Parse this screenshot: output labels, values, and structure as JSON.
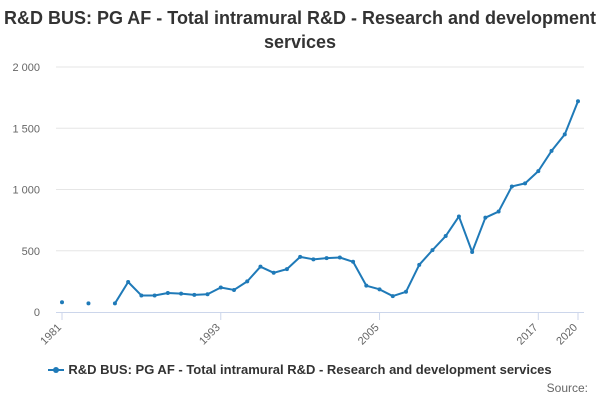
{
  "chart_data": {
    "type": "line",
    "title": "R&D BUS: PG AF - Total intramural R&D - Research and development services",
    "x": [
      1981,
      1983,
      1985,
      1986,
      1987,
      1988,
      1989,
      1990,
      1991,
      1992,
      1993,
      1994,
      1995,
      1996,
      1997,
      1998,
      1999,
      2000,
      2001,
      2002,
      2003,
      2004,
      2005,
      2006,
      2007,
      2008,
      2009,
      2010,
      2011,
      2012,
      2013,
      2014,
      2015,
      2016,
      2017,
      2018,
      2019,
      2020
    ],
    "xtick_labels": [
      "1981",
      "1993",
      "2005",
      "2017",
      "2020"
    ],
    "ytick_labels": [
      "0",
      "500",
      "1 000",
      "1 500",
      "2 000"
    ],
    "ylim": [
      0,
      2000
    ],
    "xlim": [
      1981,
      2020
    ],
    "grid": "horizontal",
    "legend_position": "bottom",
    "series": [
      {
        "name": "R&D BUS: PG AF - Total intramural R&D - Research and development services",
        "color": "#1f7ab8",
        "values": [
          80,
          70,
          70,
          245,
          135,
          135,
          155,
          150,
          140,
          145,
          200,
          180,
          250,
          370,
          320,
          350,
          450,
          430,
          440,
          445,
          410,
          215,
          185,
          130,
          165,
          385,
          505,
          620,
          780,
          490,
          770,
          820,
          1025,
          1050,
          1150,
          1315,
          1450,
          1720
        ]
      }
    ]
  },
  "footer": {
    "source_label": "Source:"
  }
}
